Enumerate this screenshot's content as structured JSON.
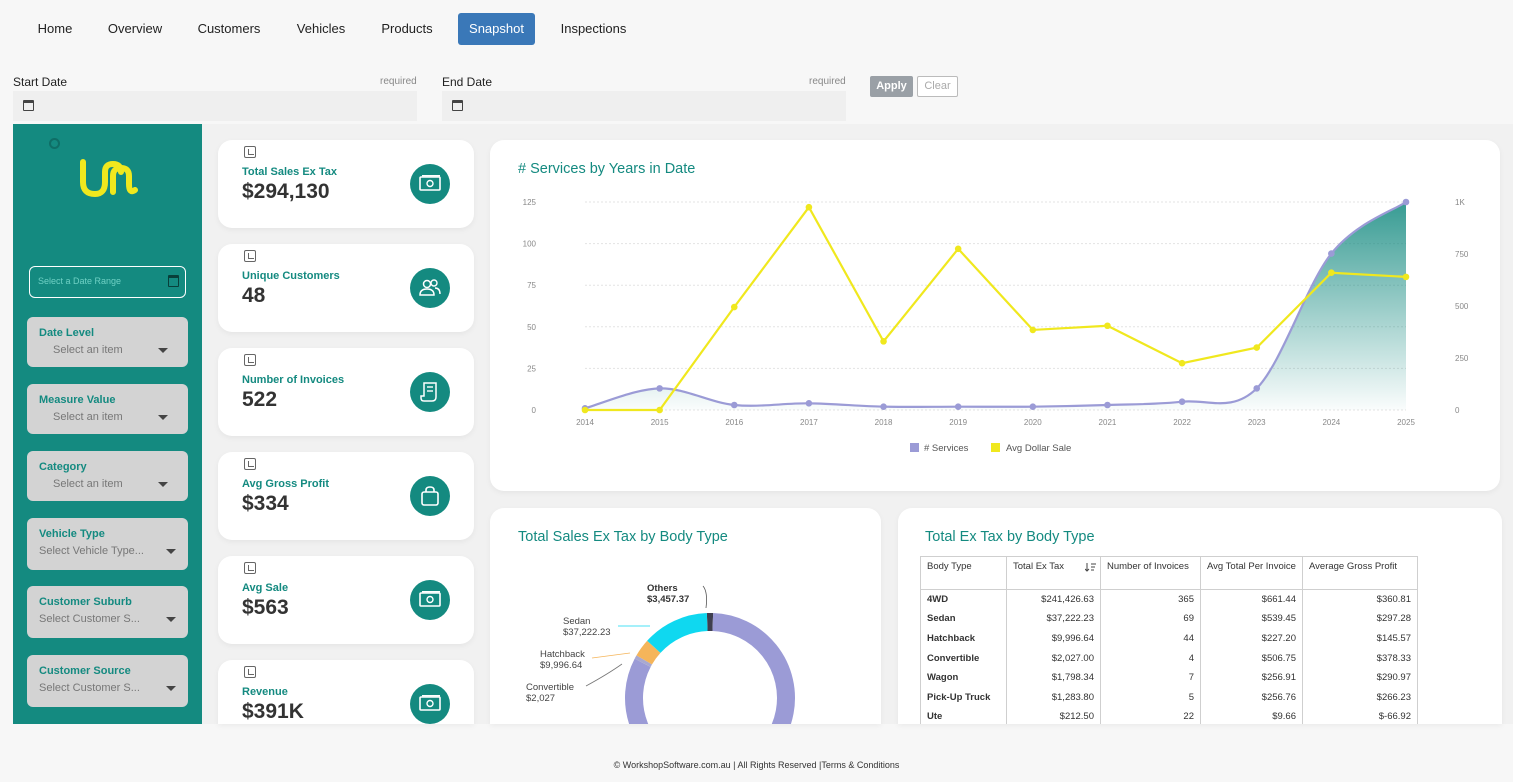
{
  "nav": {
    "items": [
      {
        "label": "Home",
        "active": false
      },
      {
        "label": "Overview",
        "active": false
      },
      {
        "label": "Customers",
        "active": false
      },
      {
        "label": "Vehicles",
        "active": false
      },
      {
        "label": "Products",
        "active": false
      },
      {
        "label": "Snapshot",
        "active": true
      },
      {
        "label": "Inspections",
        "active": false
      }
    ]
  },
  "filters": {
    "start_label": "Start Date",
    "start_required": "required",
    "end_label": "End Date",
    "end_required": "required",
    "apply_label": "Apply",
    "clear_label": "Clear"
  },
  "sidebar": {
    "date_range_placeholder": "Select a Date Range",
    "filters": [
      {
        "label": "Date Level",
        "value": "Select an item"
      },
      {
        "label": "Measure Value",
        "value": "Select an item"
      },
      {
        "label": "Category",
        "value": "Select an item"
      },
      {
        "label": "Vehicle Type",
        "value": "Select Vehicle Type..."
      },
      {
        "label": "Customer Suburb",
        "value": "Select Customer S..."
      },
      {
        "label": "Customer Source",
        "value": "Select Customer S..."
      }
    ]
  },
  "kpis": [
    {
      "title": "Total Sales Ex Tax",
      "value": "$294,130",
      "icon": "cash-icon"
    },
    {
      "title": "Unique Customers",
      "value": "48",
      "icon": "users-icon"
    },
    {
      "title": "Number of Invoices",
      "value": "522",
      "icon": "invoice-icon"
    },
    {
      "title": "Avg Gross Profit",
      "value": "$334",
      "icon": "bag-icon"
    },
    {
      "title": "Avg Sale",
      "value": "$563",
      "icon": "cash-icon"
    },
    {
      "title": "Revenue",
      "value": "$391K",
      "icon": "cash-icon"
    }
  ],
  "colors": {
    "teal": "#148a80",
    "services": "#9b9bd6",
    "avg_sale": "#f0e81e",
    "nav_active": "#3a78b8",
    "logo": "#f0e81e"
  },
  "chart_data": [
    {
      "type": "line",
      "title": "# Services by Years in Date",
      "x": [
        "2014",
        "2015",
        "2016",
        "2017",
        "2018",
        "2019",
        "2020",
        "2021",
        "2022",
        "2023",
        "2024",
        "2025"
      ],
      "y_ticks": [
        "0",
        "25",
        "50",
        "75",
        "100",
        "125"
      ],
      "y2_ticks": [
        "0",
        "250",
        "500",
        "750",
        "1K"
      ],
      "ylim": [
        0,
        125
      ],
      "y2lim": [
        0,
        1000
      ],
      "legend_position": "bottom",
      "series": [
        {
          "name": "# Services",
          "axis": "left",
          "values": [
            1,
            13,
            3,
            4,
            2,
            2,
            2,
            3,
            5,
            13,
            94,
            125
          ]
        },
        {
          "name": "Avg Dollar Sale",
          "axis": "right",
          "values": [
            0,
            0,
            495,
            975,
            330,
            775,
            385,
            405,
            225,
            300,
            660,
            640
          ]
        }
      ]
    },
    {
      "type": "pie",
      "title": "Total Sales Ex Tax by Body Type",
      "labels": [
        "4WD",
        "Sedan",
        "Hatchback",
        "Convertible",
        "Others"
      ],
      "values": [
        241426.63,
        37222.23,
        9996.64,
        2027.0,
        3457.37
      ],
      "data_labels": [
        {
          "name": "Others",
          "value": "$3,457.37"
        },
        {
          "name": "Sedan",
          "value": "$37,222.23"
        },
        {
          "name": "Hatchback",
          "value": "$9,996.64"
        },
        {
          "name": "Convertible",
          "value": "$2,027"
        }
      ]
    },
    {
      "type": "table",
      "title": "Total Ex Tax by Body Type",
      "columns": [
        "Body Type",
        "Total Ex Tax",
        "Number of Invoices",
        "Avg Total Per Invoice",
        "Average Gross Profit"
      ],
      "rows": [
        [
          "4WD",
          "$241,426.63",
          "365",
          "$661.44",
          "$360.81"
        ],
        [
          "Sedan",
          "$37,222.23",
          "69",
          "$539.45",
          "$297.28"
        ],
        [
          "Hatchback",
          "$9,996.64",
          "44",
          "$227.20",
          "$145.57"
        ],
        [
          "Convertible",
          "$2,027.00",
          "4",
          "$506.75",
          "$378.33"
        ],
        [
          "Wagon",
          "$1,798.34",
          "7",
          "$256.91",
          "$290.97"
        ],
        [
          "Pick-Up Truck",
          "$1,283.80",
          "5",
          "$256.76",
          "$266.23"
        ],
        [
          "Ute",
          "$212.50",
          "22",
          "$9.66",
          "$-66.92"
        ]
      ]
    }
  ],
  "footer": "© WorkshopSoftware.com.au | All Rights Reserved |Terms & Conditions"
}
